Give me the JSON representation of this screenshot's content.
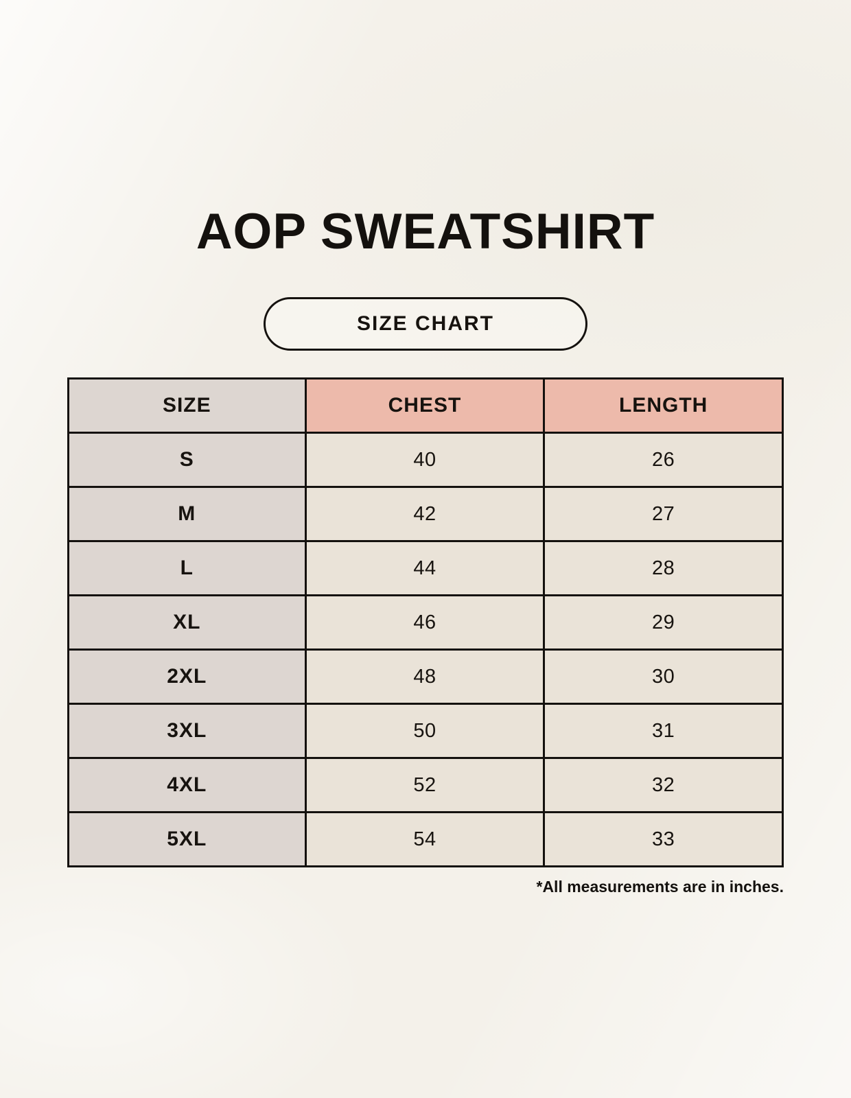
{
  "header": {
    "title": "AOP SWEATSHIRT",
    "badge": "SIZE CHART"
  },
  "footnote": "*All measurements are in inches.",
  "chart_data": {
    "type": "table",
    "title": "AOP SWEATSHIRT",
    "subtitle": "SIZE CHART",
    "columns": [
      "SIZE",
      "CHEST",
      "LENGTH"
    ],
    "rows": [
      [
        "S",
        40,
        26
      ],
      [
        "M",
        42,
        27
      ],
      [
        "L",
        44,
        28
      ],
      [
        "XL",
        46,
        29
      ],
      [
        "2XL",
        48,
        30
      ],
      [
        "3XL",
        50,
        31
      ],
      [
        "4XL",
        52,
        32
      ],
      [
        "5XL",
        54,
        33
      ]
    ],
    "units": "inches",
    "note": "*All measurements are in inches."
  },
  "colors": {
    "page_background": "#f4f1ea",
    "header_accent_bg": "#edbaab",
    "size_column_bg": "#ddd6d1",
    "value_cell_bg": "#eae3d8",
    "border": "#14110e",
    "text": "#14110e"
  }
}
